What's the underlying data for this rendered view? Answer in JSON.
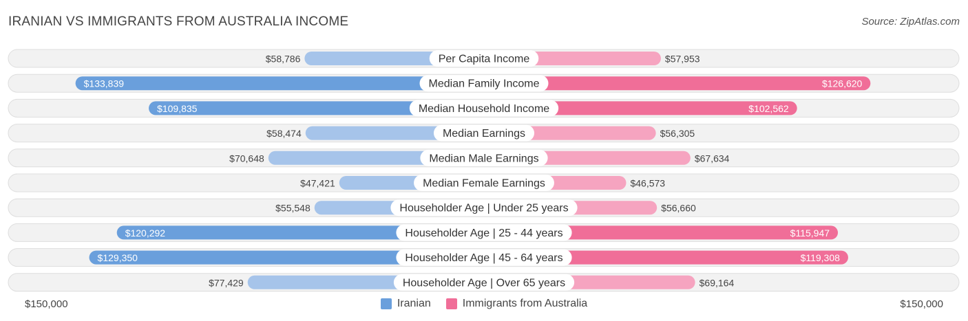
{
  "header": {
    "title": "IRANIAN VS IMMIGRANTS FROM AUSTRALIA INCOME",
    "source": "Source: ZipAtlas.com"
  },
  "colors": {
    "iranian_strong": "#6a9fdc",
    "iranian_light": "#a6c4ea",
    "australia_strong": "#f06e98",
    "australia_light": "#f6a4c0",
    "row_bg": "#f2f2f2",
    "row_border": "#dddddd"
  },
  "axis": {
    "left_label": "$150,000",
    "right_label": "$150,000"
  },
  "legend": {
    "items": [
      {
        "label": "Iranian",
        "color": "#6a9fdc"
      },
      {
        "label": "Immigrants from Australia",
        "color": "#f06e98"
      }
    ]
  },
  "chart_data": {
    "type": "bar",
    "orientation": "diverging-horizontal",
    "title": "IRANIAN VS IMMIGRANTS FROM AUSTRALIA INCOME",
    "xlim": [
      0,
      150000
    ],
    "categories": [
      "Per Capita Income",
      "Median Family Income",
      "Median Household Income",
      "Median Earnings",
      "Median Male Earnings",
      "Median Female Earnings",
      "Householder Age | Under 25 years",
      "Householder Age | 25 - 44 years",
      "Householder Age | 45 - 64 years",
      "Householder Age | Over 65 years"
    ],
    "series": [
      {
        "name": "Iranian",
        "side": "left",
        "values": [
          58786,
          133839,
          109835,
          58474,
          70648,
          47421,
          55548,
          120292,
          129350,
          77429
        ],
        "labels": [
          "$58,786",
          "$133,839",
          "$109,835",
          "$58,474",
          "$70,648",
          "$47,421",
          "$55,548",
          "$120,292",
          "$129,350",
          "$77,429"
        ]
      },
      {
        "name": "Immigrants from Australia",
        "side": "right",
        "values": [
          57953,
          126620,
          102562,
          56305,
          67634,
          46573,
          56660,
          115947,
          119308,
          69164
        ],
        "labels": [
          "$57,953",
          "$126,620",
          "$102,562",
          "$56,305",
          "$67,634",
          "$46,573",
          "$56,660",
          "$115,947",
          "$119,308",
          "$69,164"
        ]
      }
    ],
    "legend_position": "bottom-center"
  }
}
